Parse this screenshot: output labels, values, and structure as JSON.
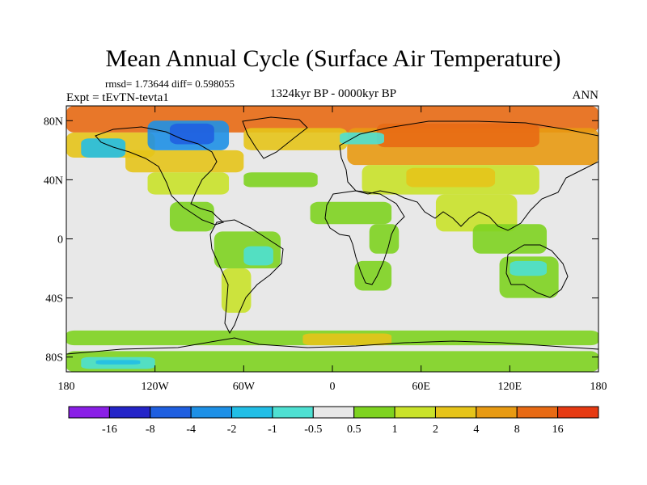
{
  "chart_data": {
    "type": "heatmap",
    "title": "Mean Annual Cycle (Surface Air Temperature)",
    "stats_line": "rmsd= 1.73644 diff= 0.598055",
    "experiment": "Expt = tEvTN-tevta1",
    "period": "1324kyr BP - 0000kyr BP",
    "season": "ANN",
    "x_ticks": [
      "180",
      "120W",
      "60W",
      "0",
      "60E",
      "120E",
      "180"
    ],
    "x_tick_values": [
      -180,
      -120,
      -60,
      0,
      60,
      120,
      180
    ],
    "y_ticks": [
      "80N",
      "40N",
      "0",
      "40S",
      "80S"
    ],
    "y_tick_values": [
      80,
      40,
      0,
      -40,
      -80
    ],
    "xlim": [
      -180,
      180
    ],
    "ylim": [
      -90,
      90
    ],
    "colorbar_labels": [
      "-16",
      "-8",
      "-4",
      "-2",
      "-1",
      "-0.5",
      "0.5",
      "1",
      "2",
      "4",
      "8",
      "16"
    ],
    "colorbar_colors": [
      "#8a1fe6",
      "#2424c8",
      "#1f5fe0",
      "#1e90e6",
      "#22bee6",
      "#4ee0d2",
      "#e8e8e8",
      "#7ed320",
      "#c9e22a",
      "#e6c41a",
      "#e89a12",
      "#e86a14",
      "#e63a12"
    ],
    "field_regions": [
      {
        "name": "arctic-warm-band",
        "bin": 11,
        "lon": [
          -180,
          180
        ],
        "lat": [
          72,
          90
        ]
      },
      {
        "name": "eurasia-north",
        "bin": 10,
        "lon": [
          10,
          180
        ],
        "lat": [
          50,
          75
        ]
      },
      {
        "name": "siberia-core",
        "bin": 11,
        "lon": [
          30,
          140
        ],
        "lat": [
          62,
          78
        ]
      },
      {
        "name": "n-atlantic-arm",
        "bin": 9,
        "lon": [
          -60,
          10
        ],
        "lat": [
          60,
          75
        ]
      },
      {
        "name": "north-pacific",
        "bin": 9,
        "lon": [
          -180,
          -120
        ],
        "lat": [
          55,
          72
        ]
      },
      {
        "name": "n-america-north",
        "bin": 9,
        "lon": [
          -140,
          -60
        ],
        "lat": [
          45,
          60
        ]
      },
      {
        "name": "n-america-mid",
        "bin": 8,
        "lon": [
          -125,
          -70
        ],
        "lat": [
          30,
          45
        ]
      },
      {
        "name": "eurasia-mid",
        "bin": 8,
        "lon": [
          20,
          140
        ],
        "lat": [
          30,
          50
        ]
      },
      {
        "name": "central-asia",
        "bin": 9,
        "lon": [
          50,
          110
        ],
        "lat": [
          35,
          48
        ]
      },
      {
        "name": "n-atlantic-band",
        "bin": 7,
        "lon": [
          -60,
          -10
        ],
        "lat": [
          35,
          45
        ]
      },
      {
        "name": "sahara-band",
        "bin": 7,
        "lon": [
          -15,
          40
        ],
        "lat": [
          10,
          25
        ]
      },
      {
        "name": "south-asia",
        "bin": 8,
        "lon": [
          70,
          125
        ],
        "lat": [
          5,
          30
        ]
      },
      {
        "name": "se-asia",
        "bin": 7,
        "lon": [
          95,
          145
        ],
        "lat": [
          -10,
          10
        ]
      },
      {
        "name": "central-america",
        "bin": 7,
        "lon": [
          -110,
          -80
        ],
        "lat": [
          5,
          25
        ]
      },
      {
        "name": "amazon",
        "bin": 7,
        "lon": [
          -80,
          -35
        ],
        "lat": [
          -20,
          5
        ]
      },
      {
        "name": "s-america-south",
        "bin": 8,
        "lon": [
          -75,
          -55
        ],
        "lat": [
          -50,
          -20
        ]
      },
      {
        "name": "southern-africa",
        "bin": 7,
        "lon": [
          15,
          40
        ],
        "lat": [
          -35,
          -15
        ]
      },
      {
        "name": "east-africa",
        "bin": 7,
        "lon": [
          25,
          45
        ],
        "lat": [
          -10,
          10
        ]
      },
      {
        "name": "australia",
        "bin": 7,
        "lon": [
          113,
          153
        ],
        "lat": [
          -40,
          -12
        ]
      },
      {
        "name": "southern-ocean-band",
        "bin": 7,
        "lon": [
          -180,
          180
        ],
        "lat": [
          -72,
          -62
        ]
      },
      {
        "name": "antarctic-coast-warm",
        "bin": 9,
        "lon": [
          -20,
          40
        ],
        "lat": [
          -72,
          -64
        ]
      },
      {
        "name": "antarctic-south",
        "bin": 7,
        "lon": [
          -180,
          180
        ],
        "lat": [
          -90,
          -76
        ]
      },
      {
        "name": "canada-cold",
        "bin": 3,
        "lon": [
          -125,
          -70
        ],
        "lat": [
          60,
          80
        ]
      },
      {
        "name": "hudson-cold",
        "bin": 2,
        "lon": [
          -110,
          -80
        ],
        "lat": [
          64,
          78
        ]
      },
      {
        "name": "alaska-cold",
        "bin": 4,
        "lon": [
          -170,
          -140
        ],
        "lat": [
          55,
          68
        ]
      },
      {
        "name": "scandinavia-cool",
        "bin": 5,
        "lon": [
          5,
          35
        ],
        "lat": [
          64,
          72
        ]
      },
      {
        "name": "brazil-cool",
        "bin": 5,
        "lon": [
          -60,
          -40
        ],
        "lat": [
          -18,
          -5
        ]
      },
      {
        "name": "australia-cool",
        "bin": 5,
        "lon": [
          120,
          145
        ],
        "lat": [
          -25,
          -15
        ]
      },
      {
        "name": "antarctic-pacific-cool",
        "bin": 5,
        "lon": [
          -170,
          -120
        ],
        "lat": [
          -88,
          -80
        ]
      },
      {
        "name": "antarctic-cool",
        "bin": 4,
        "lon": [
          -160,
          -130
        ],
        "lat": [
          -85,
          -82
        ]
      }
    ]
  }
}
